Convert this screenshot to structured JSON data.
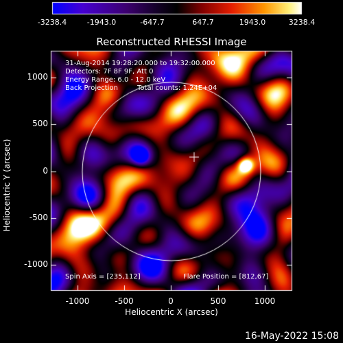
{
  "colorbar": {
    "ticks": [
      "-3238.4",
      "-1943.0",
      "-647.7",
      "647.7",
      "1943.0",
      "3238.4"
    ],
    "colors": [
      "#0000ff",
      "#6a00c8",
      "#3a0060",
      "#000000",
      "#8b0000",
      "#ff3000",
      "#ff9000",
      "#ffff80",
      "#ffffff"
    ]
  },
  "title": "Reconstructed RHESSI Image",
  "info": {
    "time": "31-Aug-2014 19:28:20.000 to 19:32:00.000",
    "detectors": "Detectors: 7F 8F 9F, Att 0",
    "energy": "Energy Range: 6.0 - 12.0 keV",
    "method": "Back Projection",
    "counts": "Total counts: 1.24E+04"
  },
  "axes": {
    "xlabel": "Heliocentric X (arcsec)",
    "ylabel": "Heliocentric Y (arcsec)",
    "xticks": [
      "-1000",
      "-500",
      "0",
      "500",
      "1000"
    ],
    "yticks": [
      "1000",
      "500",
      "0",
      "-500",
      "-1000"
    ]
  },
  "footer": {
    "spin_axis": "Spin Axis = [235,112]",
    "flare_position": "Flare Position = [812,67]"
  },
  "date": "16-May-2022 15:08",
  "colors": {
    "background": "#000000",
    "foreground": "#ffffff"
  }
}
